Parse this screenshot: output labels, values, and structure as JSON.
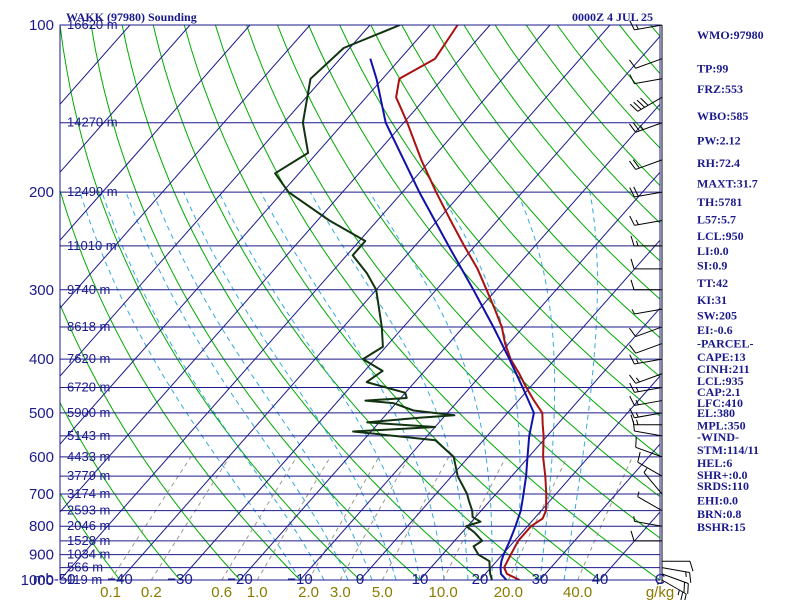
{
  "header": {
    "station": "WAKK (97980) Sounding",
    "time": "0000Z  4 JUL 25"
  },
  "colors": {
    "frame": "#1a1a8c",
    "isotherm": "#1a1a8c",
    "dry_adiabat": "#00aa00",
    "moist_adiabat": "#33aadd",
    "mixing_ratio": "#999988",
    "temperature": "#aa1111",
    "dewpoint": "#113311",
    "parcel": "#1111aa",
    "wind": "#000000"
  },
  "chart_data": {
    "type": "line",
    "title": "WAKK (97980) Sounding",
    "xlabel": "C",
    "ylabel": "mb",
    "ylim": [
      1000,
      100
    ],
    "xlim": [
      -50,
      50
    ],
    "grid": true,
    "pressure_ticks": [
      {
        "p": 100,
        "label": "100"
      },
      {
        "p": 200,
        "label": "200"
      },
      {
        "p": 300,
        "label": "300"
      },
      {
        "p": 400,
        "label": "400"
      },
      {
        "p": 500,
        "label": "500"
      },
      {
        "p": 600,
        "label": "600"
      },
      {
        "p": 700,
        "label": "700"
      },
      {
        "p": 800,
        "label": "800"
      },
      {
        "p": 900,
        "label": "900"
      },
      {
        "p": 1000,
        "label": "1000"
      }
    ],
    "temp_ticks": [
      {
        "t": -50,
        "label": "mb-50"
      },
      {
        "t": -40,
        "label": "−40"
      },
      {
        "t": -30,
        "label": "−30"
      },
      {
        "t": -20,
        "label": "−20"
      },
      {
        "t": -10,
        "label": "−10"
      },
      {
        "t": 0,
        "label": "0"
      },
      {
        "t": 10,
        "label": "10"
      },
      {
        "t": 20,
        "label": "20"
      },
      {
        "t": 30,
        "label": "30"
      },
      {
        "t": 40,
        "label": "40"
      },
      {
        "t": 50,
        "label": "C"
      }
    ],
    "mixing_ratio_labels": [
      {
        "w": 0.1,
        "label": "0.1"
      },
      {
        "w": 0.2,
        "label": "0.2"
      },
      {
        "w": 0.6,
        "label": "0.6"
      },
      {
        "w": 1.0,
        "label": "1.0"
      },
      {
        "w": 2.0,
        "label": "2.0"
      },
      {
        "w": 3.0,
        "label": "3.0"
      },
      {
        "w": 5.0,
        "label": "5.0"
      },
      {
        "w": 10.0,
        "label": "10.0"
      },
      {
        "w": 20.0,
        "label": "20.0"
      },
      {
        "w": 40.0,
        "label": "40.0"
      },
      {
        "w": 0,
        "label": "g/kg"
      }
    ],
    "height_labels": [
      {
        "p": 100,
        "label": "16620 m"
      },
      {
        "p": 150,
        "label": "14270 m"
      },
      {
        "p": 200,
        "label": "12490 m"
      },
      {
        "p": 250,
        "label": "11010 m"
      },
      {
        "p": 300,
        "label": "9740 m"
      },
      {
        "p": 350,
        "label": "8618 m"
      },
      {
        "p": 400,
        "label": "7620 m"
      },
      {
        "p": 450,
        "label": "6720 m"
      },
      {
        "p": 500,
        "label": "5900 m"
      },
      {
        "p": 550,
        "label": "5143 m"
      },
      {
        "p": 600,
        "label": "4433 m"
      },
      {
        "p": 650,
        "label": "3779 m"
      },
      {
        "p": 700,
        "label": "3174 m"
      },
      {
        "p": 750,
        "label": "2593 m"
      },
      {
        "p": 800,
        "label": "2046 m"
      },
      {
        "p": 850,
        "label": "1528 m"
      },
      {
        "p": 900,
        "label": "1034 m"
      },
      {
        "p": 950,
        "label": "566 m"
      },
      {
        "p": 1000,
        "label": "119 m"
      }
    ],
    "series": [
      {
        "key": "temperature",
        "values": [
          [
            1000,
            26.6
          ],
          [
            975,
            23.6
          ],
          [
            950,
            22.2
          ],
          [
            925,
            21.8
          ],
          [
            900,
            21.4
          ],
          [
            850,
            20.6
          ],
          [
            800,
            20.6
          ],
          [
            775,
            21.4
          ],
          [
            750,
            20.8
          ],
          [
            700,
            18.4
          ],
          [
            650,
            15.6
          ],
          [
            600,
            12.4
          ],
          [
            550,
            9.4
          ],
          [
            525,
            7.6
          ],
          [
            500,
            5.8
          ],
          [
            475,
            2.6
          ],
          [
            450,
            -0.6
          ],
          [
            425,
            -3.8
          ],
          [
            400,
            -7.4
          ],
          [
            375,
            -10.6
          ],
          [
            350,
            -13.6
          ],
          [
            325,
            -17.4
          ],
          [
            300,
            -21.6
          ],
          [
            275,
            -26.2
          ],
          [
            250,
            -31.8
          ],
          [
            225,
            -37.8
          ],
          [
            200,
            -44.4
          ],
          [
            175,
            -51.6
          ],
          [
            150,
            -59.4
          ],
          [
            135,
            -65.0
          ],
          [
            125,
            -67.2
          ],
          [
            115,
            -64.2
          ],
          [
            100,
            -65.4
          ]
        ]
      },
      {
        "key": "dewpoint",
        "values": [
          [
            1000,
            22.0
          ],
          [
            975,
            20.8
          ],
          [
            950,
            19.8
          ],
          [
            925,
            18.8
          ],
          [
            900,
            16.0
          ],
          [
            870,
            14.0
          ],
          [
            850,
            14.6
          ],
          [
            820,
            12.0
          ],
          [
            800,
            9.8
          ],
          [
            785,
            11.5
          ],
          [
            770,
            9.5
          ],
          [
            750,
            8.5
          ],
          [
            720,
            6.5
          ],
          [
            700,
            5.2
          ],
          [
            650,
            1.0
          ],
          [
            600,
            -2.5
          ],
          [
            560,
            -8.0
          ],
          [
            540,
            -23.0
          ],
          [
            530,
            -10.0
          ],
          [
            520,
            -22.0
          ],
          [
            510,
            -14.0
          ],
          [
            505,
            -8.5
          ],
          [
            495,
            -16.0
          ],
          [
            480,
            -20.5
          ],
          [
            475,
            -25.5
          ],
          [
            470,
            -19.0
          ],
          [
            460,
            -20.0
          ],
          [
            440,
            -28.0
          ],
          [
            420,
            -27.0
          ],
          [
            400,
            -32.0
          ],
          [
            380,
            -30.5
          ],
          [
            350,
            -33.6
          ],
          [
            300,
            -40.0
          ],
          [
            280,
            -44.0
          ],
          [
            260,
            -49.0
          ],
          [
            245,
            -49.0
          ],
          [
            225,
            -58.0
          ],
          [
            200,
            -69.0
          ],
          [
            185,
            -74.0
          ],
          [
            170,
            -71.5
          ],
          [
            150,
            -76.8
          ],
          [
            125,
            -82.0
          ],
          [
            110,
            -81.0
          ],
          [
            100,
            -75.0
          ]
        ]
      },
      {
        "key": "parcel",
        "values": [
          [
            1000,
            24.4
          ],
          [
            975,
            22.6
          ],
          [
            950,
            21.6
          ],
          [
            925,
            20.8
          ],
          [
            900,
            20.2
          ],
          [
            850,
            19.2
          ],
          [
            800,
            18.0
          ],
          [
            750,
            16.6
          ],
          [
            700,
            14.6
          ],
          [
            650,
            12.4
          ],
          [
            600,
            9.8
          ],
          [
            550,
            7.0
          ],
          [
            500,
            4.4
          ],
          [
            450,
            -1.2
          ],
          [
            400,
            -7.6
          ],
          [
            350,
            -15.0
          ],
          [
            300,
            -23.8
          ],
          [
            250,
            -34.4
          ],
          [
            200,
            -47.2
          ],
          [
            150,
            -63.0
          ],
          [
            125,
            -71.0
          ],
          [
            115,
            -75.0
          ]
        ]
      }
    ],
    "wind_levels": [
      {
        "p": 100,
        "dir": 260,
        "spd": 15
      },
      {
        "p": 115,
        "dir": 250,
        "spd": 10
      },
      {
        "p": 125,
        "dir": 260,
        "spd": 10
      },
      {
        "p": 135,
        "dir": 240,
        "spd": 40
      },
      {
        "p": 150,
        "dir": 250,
        "spd": 25
      },
      {
        "p": 175,
        "dir": 250,
        "spd": 20
      },
      {
        "p": 200,
        "dir": 260,
        "spd": 20
      },
      {
        "p": 225,
        "dir": 260,
        "spd": 15
      },
      {
        "p": 250,
        "dir": 270,
        "spd": 15
      },
      {
        "p": 275,
        "dir": 270,
        "spd": 10
      },
      {
        "p": 300,
        "dir": 270,
        "spd": 10
      },
      {
        "p": 325,
        "dir": 260,
        "spd": 5
      },
      {
        "p": 350,
        "dir": 250,
        "spd": 10
      },
      {
        "p": 375,
        "dir": 250,
        "spd": 10
      },
      {
        "p": 400,
        "dir": 260,
        "spd": 15
      },
      {
        "p": 425,
        "dir": 250,
        "spd": 15
      },
      {
        "p": 450,
        "dir": 260,
        "spd": 15
      },
      {
        "p": 475,
        "dir": 260,
        "spd": 15
      },
      {
        "p": 500,
        "dir": 260,
        "spd": 15
      },
      {
        "p": 525,
        "dir": 270,
        "spd": 15
      },
      {
        "p": 550,
        "dir": 280,
        "spd": 10
      },
      {
        "p": 600,
        "dir": 290,
        "spd": 10
      },
      {
        "p": 650,
        "dir": 300,
        "spd": 10
      },
      {
        "p": 700,
        "dir": 320,
        "spd": 5
      },
      {
        "p": 750,
        "dir": 300,
        "spd": 5
      },
      {
        "p": 800,
        "dir": 280,
        "spd": 5
      },
      {
        "p": 850,
        "dir": 270,
        "spd": 10
      },
      {
        "p": 900,
        "dir": 180,
        "spd": 5
      },
      {
        "p": 925,
        "dir": 90,
        "spd": 10
      },
      {
        "p": 950,
        "dir": 100,
        "spd": 15
      },
      {
        "p": 975,
        "dir": 110,
        "spd": 20
      },
      {
        "p": 1000,
        "dir": 120,
        "spd": 25
      }
    ]
  },
  "indices": [
    "WMO:97980",
    "TP:99",
    "FRZ:553",
    "WBO:585",
    "PW:2.12",
    "RH:72.4",
    "MAXT:31.7",
    "TH:5781",
    "L57:5.7",
    "LCL:950",
    "LI:0.0",
    "SI:0.9",
    "TT:42",
    "KI:31",
    "SW:205",
    "EI:-0.6",
    "-PARCEL-",
    "CAPE:13",
    "CINH:211",
    "LCL:935",
    "CAP:2.1",
    "LFC:410",
    "EL:380",
    "MPL:350",
    "-WIND-",
    "STM:114/11",
    "HEL:6",
    "SHR+:0.0",
    "SRDS:110",
    "EHI:0.0",
    "BRN:0.8",
    "BSHR:15"
  ],
  "index_pressures": [
    100,
    115,
    125,
    140,
    155,
    170,
    185,
    200,
    215,
    230,
    245,
    260,
    280,
    300,
    320,
    340,
    360,
    380,
    400,
    420,
    440,
    460,
    480,
    505,
    530,
    560,
    590,
    620,
    650,
    690,
    730,
    770
  ]
}
